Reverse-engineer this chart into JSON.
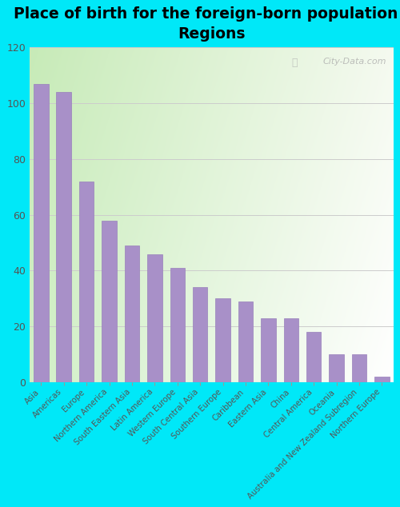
{
  "title": "Place of birth for the foreign-born population -\nRegions",
  "categories": [
    "Asia",
    "Americas",
    "Europe",
    "Northern America",
    "South Eastern Asia",
    "Latin America",
    "Western Europe",
    "South Central Asia",
    "Southern Europe",
    "Caribbean",
    "Eastern Asia",
    "China",
    "Central America",
    "Oceania",
    "Australia and New Zealand Subregion",
    "Northern Europe"
  ],
  "values": [
    107,
    104,
    72,
    58,
    49,
    46,
    41,
    34,
    30,
    29,
    23,
    23,
    18,
    10,
    10,
    2
  ],
  "bar_color": "#a890c8",
  "bar_edge_color": "#9880bb",
  "background_color_fig": "#00e8f8",
  "title_fontsize": 13.5,
  "ylim": [
    0,
    120
  ],
  "yticks": [
    0,
    20,
    40,
    60,
    80,
    100,
    120
  ],
  "watermark": "City-Data.com",
  "grad_topleft": "#c8e8b0",
  "grad_topright": "#e8f0c0",
  "grad_bottomleft": "#e0f8e0",
  "grad_bottomright": "#f8fff0"
}
